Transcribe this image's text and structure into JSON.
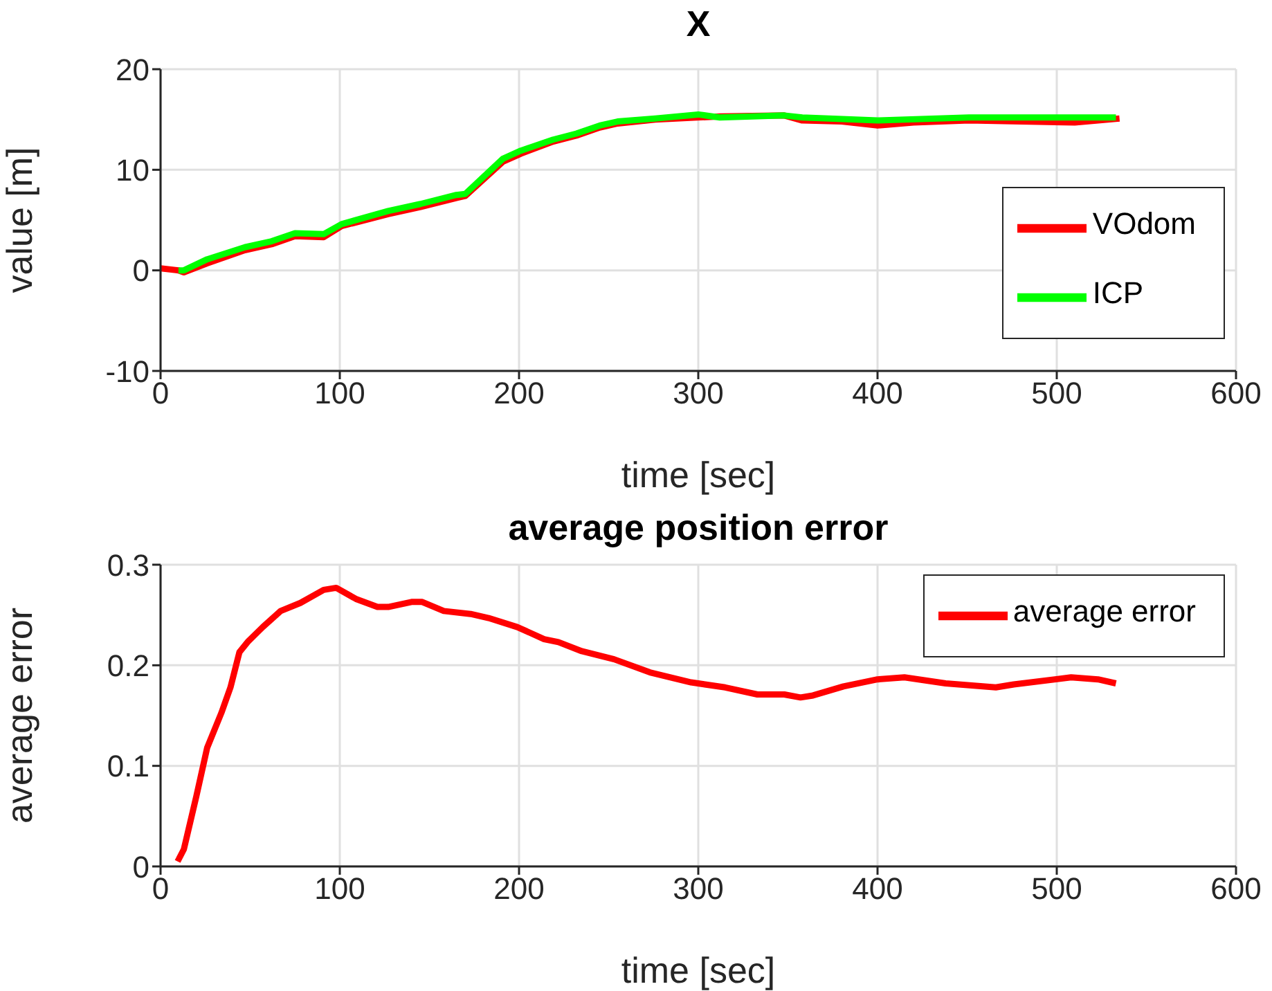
{
  "chart_data": [
    {
      "type": "line",
      "title": "X",
      "xlabel": "time [sec]",
      "ylabel": "value [m]",
      "xlim": [
        0,
        600
      ],
      "xticks": [
        0,
        100,
        200,
        300,
        400,
        500,
        600
      ],
      "ylim": [
        -10,
        20
      ],
      "yticks": [
        -10,
        0,
        10,
        20
      ],
      "grid": true,
      "legend": "bottom right",
      "line_style": "solid",
      "series": [
        {
          "name": "VOdom",
          "color": "#ff0000",
          "x": [
            0,
            10,
            13,
            26,
            47,
            62,
            75,
            91,
            101,
            127,
            145,
            165,
            170,
            191,
            201,
            219,
            232,
            245,
            255,
            276,
            312,
            348,
            358,
            380,
            400,
            420,
            451,
            480,
            510,
            535
          ],
          "values": [
            0.2,
            0,
            -0.2,
            0.7,
            2.0,
            2.6,
            3.4,
            3.3,
            4.4,
            5.6,
            6.3,
            7.2,
            7.4,
            10.8,
            11.6,
            12.8,
            13.4,
            14.2,
            14.6,
            15.0,
            15.3,
            15.4,
            14.9,
            14.8,
            14.4,
            14.7,
            14.9,
            14.8,
            14.7,
            15.1
          ]
        },
        {
          "name": "ICP",
          "color": "#00ff00",
          "x": [
            10,
            13,
            26,
            47,
            62,
            75,
            91,
            101,
            127,
            145,
            165,
            170,
            191,
            201,
            219,
            232,
            245,
            255,
            276,
            300,
            312,
            348,
            358,
            400,
            451,
            533
          ],
          "values": [
            0,
            0,
            1.1,
            2.3,
            2.9,
            3.7,
            3.6,
            4.6,
            5.9,
            6.6,
            7.5,
            7.6,
            11.1,
            11.9,
            13.0,
            13.6,
            14.4,
            14.8,
            15.1,
            15.5,
            15.2,
            15.4,
            15.2,
            14.9,
            15.2,
            15.2
          ]
        }
      ]
    },
    {
      "type": "line",
      "title": "average position error",
      "xlabel": "time [sec]",
      "ylabel": "average error",
      "xlim": [
        0,
        600
      ],
      "xticks": [
        0,
        100,
        200,
        300,
        400,
        500,
        600
      ],
      "ylim": [
        0,
        0.3
      ],
      "yticks": [
        0,
        0.1,
        0.2,
        0.3
      ],
      "grid": true,
      "legend": "top right",
      "line_style": "solid",
      "series": [
        {
          "name": "average error",
          "color": "#ff0000",
          "x": [
            9.5,
            13,
            20,
            26,
            34,
            39,
            44,
            49,
            57,
            67,
            78,
            91,
            98,
            109,
            121,
            127,
            140,
            146,
            158,
            173,
            183,
            199,
            214,
            222,
            235,
            253,
            273,
            296,
            315,
            333,
            348,
            357,
            364,
            381,
            400,
            415,
            438,
            466,
            476,
            508,
            523,
            533
          ],
          "values": [
            0.005,
            0.017,
            0.07,
            0.118,
            0.153,
            0.178,
            0.213,
            0.224,
            0.238,
            0.254,
            0.262,
            0.275,
            0.277,
            0.266,
            0.258,
            0.258,
            0.263,
            0.263,
            0.254,
            0.251,
            0.247,
            0.238,
            0.226,
            0.223,
            0.214,
            0.206,
            0.193,
            0.183,
            0.178,
            0.171,
            0.171,
            0.168,
            0.17,
            0.179,
            0.186,
            0.188,
            0.182,
            0.178,
            0.181,
            0.188,
            0.186,
            0.182
          ]
        }
      ]
    }
  ]
}
